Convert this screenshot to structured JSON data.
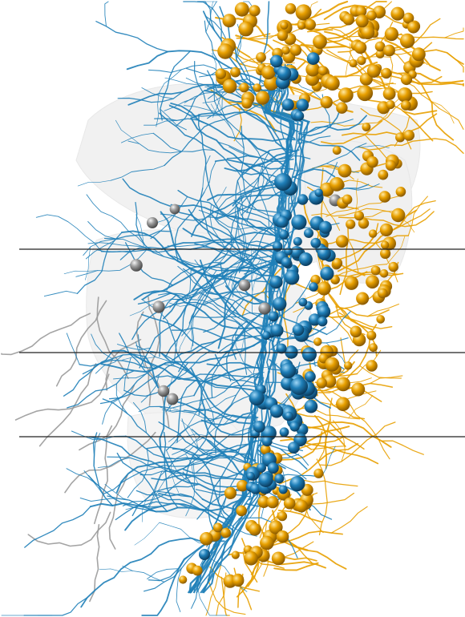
{
  "figure": {
    "kind": "3D neuron reconstruction rendering",
    "background_color": "#ffffff",
    "colors": {
      "blue_neurons": "#1f7fb8",
      "orange_neurons": "#e8a000",
      "gray_neurons": "#9a9a9a",
      "tissue_volume": "#e6e6e6",
      "section_lines": "#222222"
    },
    "section_lines_count": 3,
    "cell_groups": [
      {
        "name": "blue-cells",
        "color": "#1f7fb8"
      },
      {
        "name": "orange-cells",
        "color": "#e8a000"
      },
      {
        "name": "gray-cells",
        "color": "#9a9a9a"
      }
    ]
  }
}
